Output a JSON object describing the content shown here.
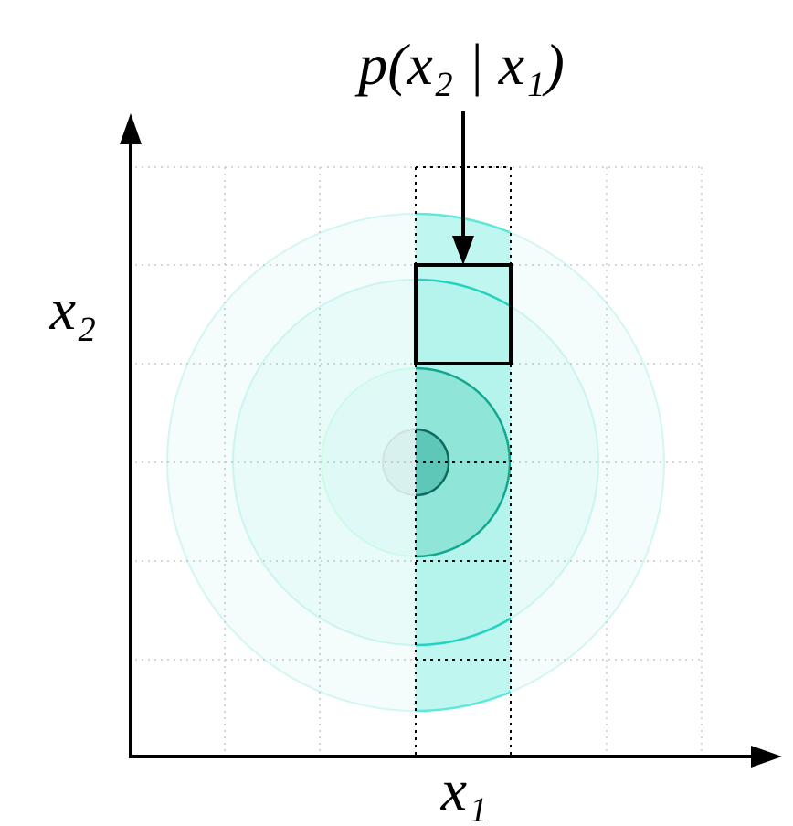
{
  "title": "p(x₂ | x₁)",
  "axes": {
    "x": "x₁",
    "y": "x₂"
  }
}
